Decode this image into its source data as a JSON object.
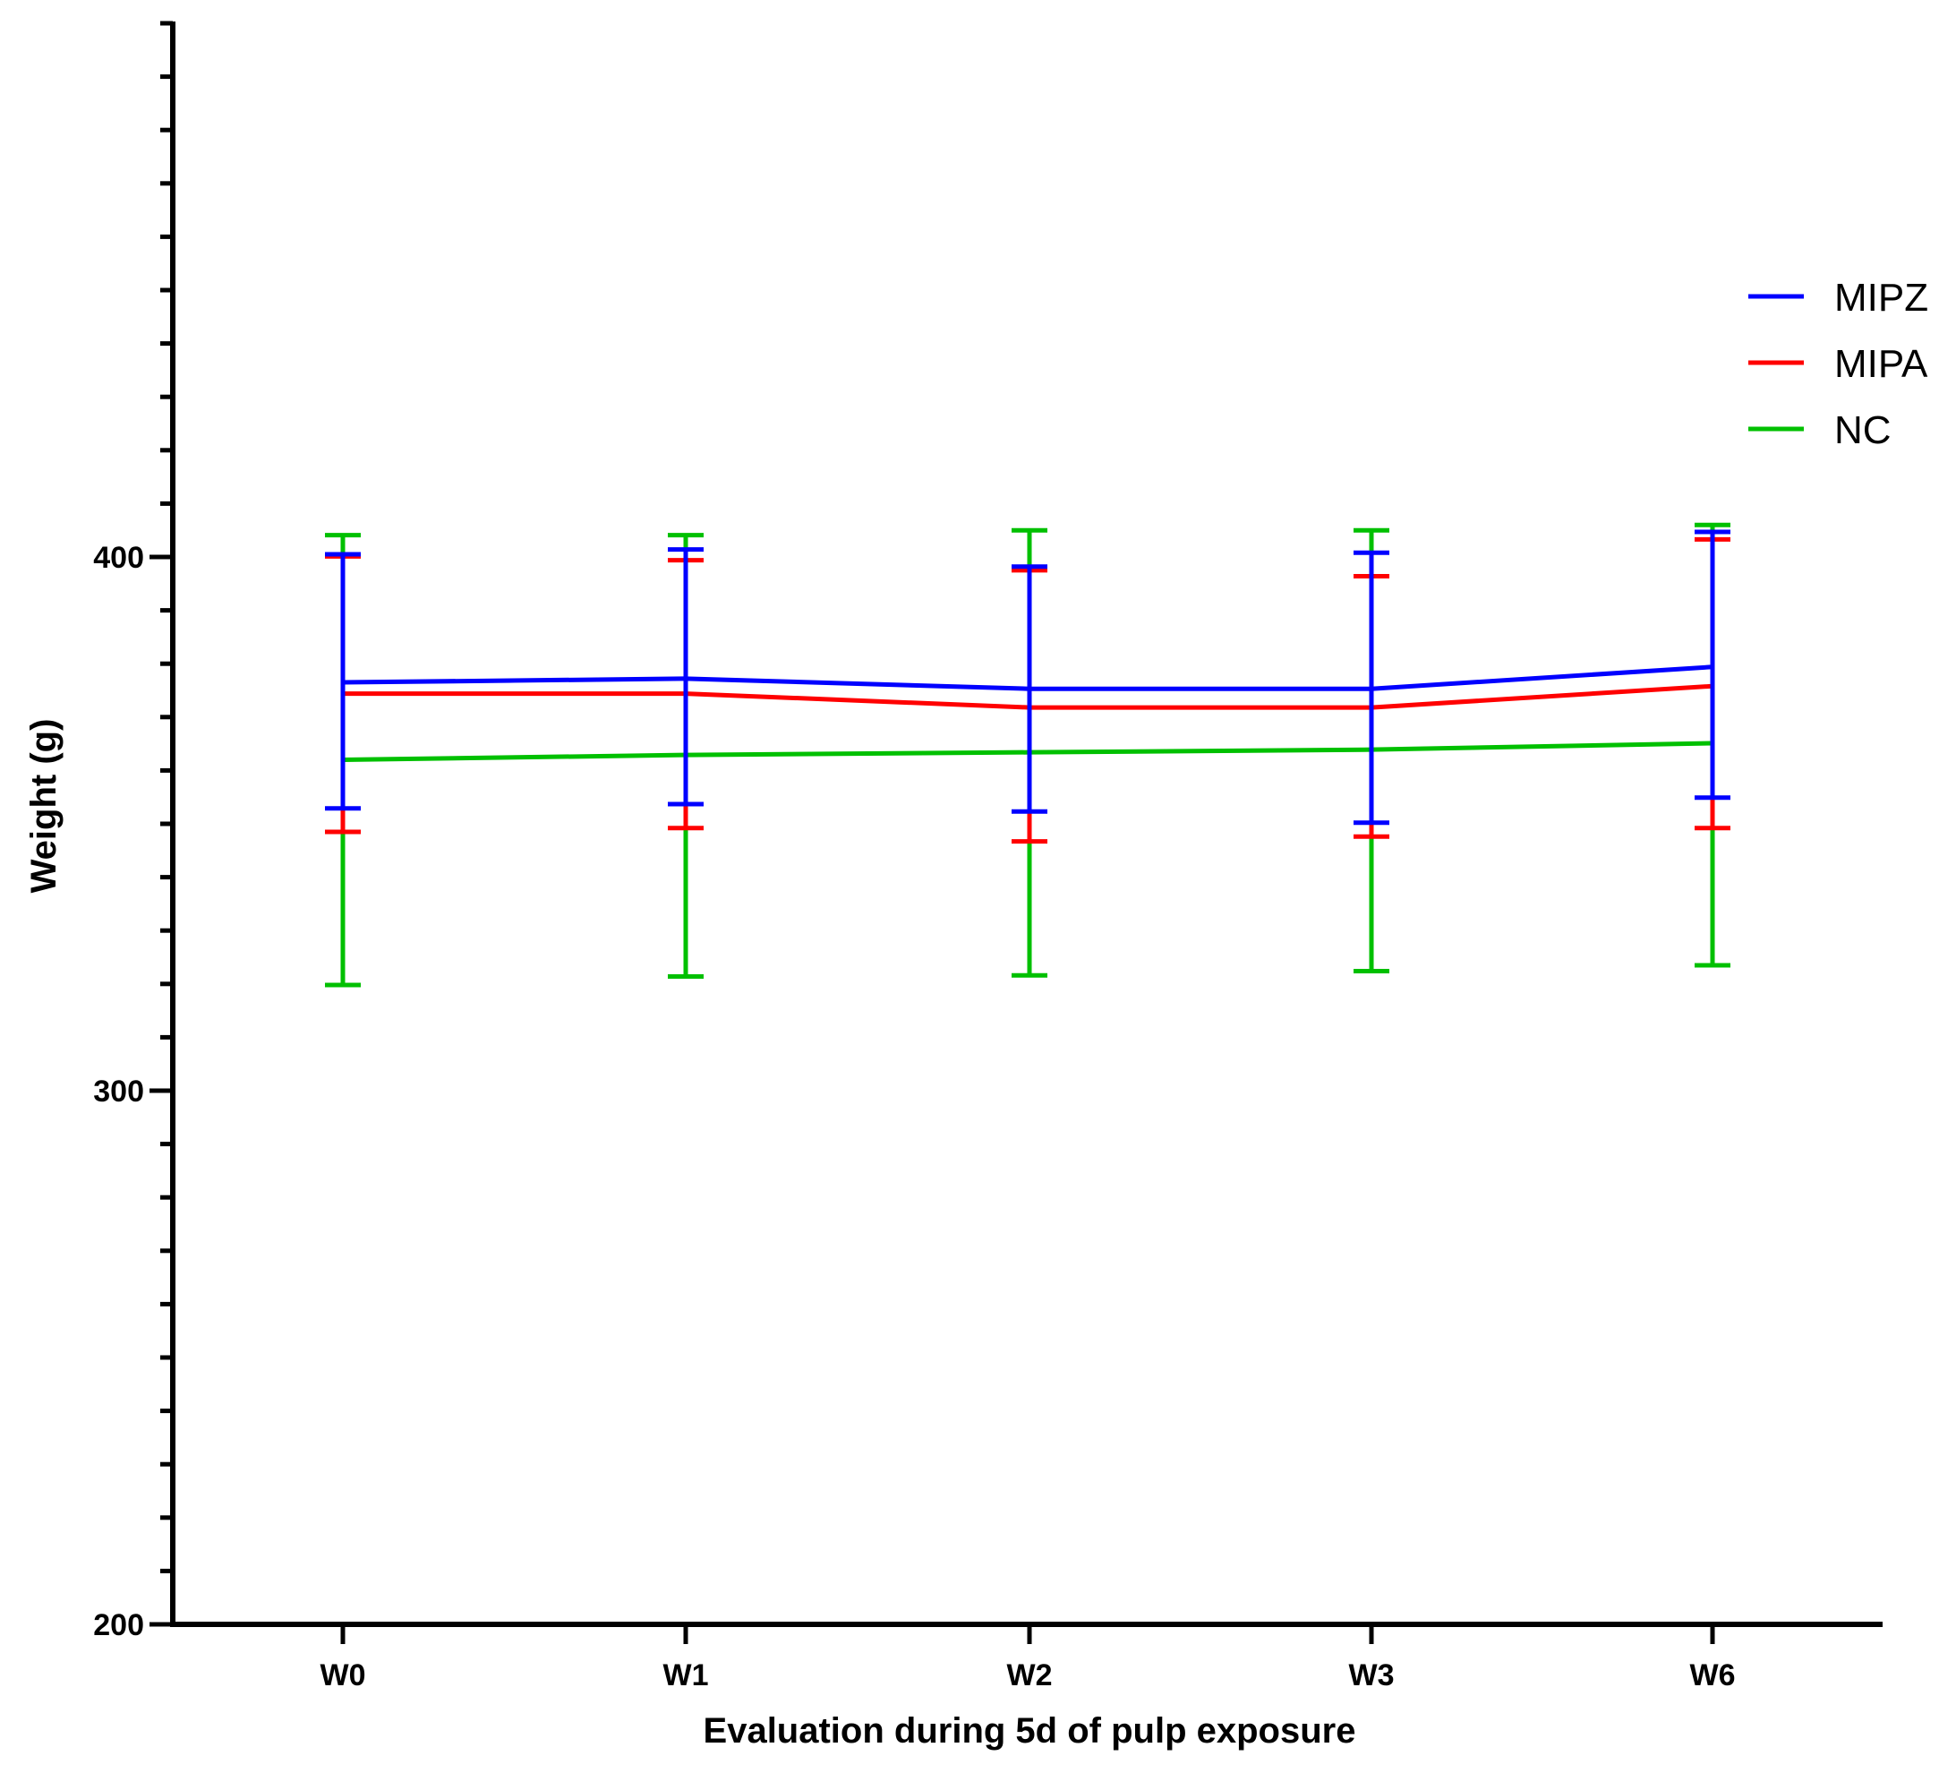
{
  "chart_data": {
    "type": "line",
    "title": "",
    "xlabel": "Evaluation during 5d of pulp exposure",
    "ylabel": "Weight (g)",
    "categories": [
      "W0",
      "W1",
      "W2",
      "W3",
      "W6"
    ],
    "ylim": [
      200,
      500
    ],
    "y_ticks": [
      {
        "value": 200,
        "label": "200"
      },
      {
        "value": 300,
        "label": "300"
      },
      {
        "value": 400,
        "label": "400"
      }
    ],
    "y_minor_step": 10,
    "grid": false,
    "legend_position": "right",
    "series": [
      {
        "name": "MIPZ",
        "color": "#0000ff",
        "values": [
          376.5,
          377.2,
          375.3,
          375.3,
          379.4
        ],
        "error_low": [
          352.9,
          353.7,
          352.3,
          350.2,
          354.9
        ],
        "error_high": [
          400.5,
          401.4,
          398.2,
          400.8,
          404.7
        ]
      },
      {
        "name": "MIPA",
        "color": "#ff0000",
        "values": [
          374.4,
          374.4,
          371.8,
          371.8,
          375.8
        ],
        "error_low": [
          348.5,
          349.2,
          346.7,
          347.6,
          349.2
        ],
        "error_high": [
          400.1,
          399.4,
          397.5,
          396.4,
          403.3
        ]
      },
      {
        "name": "NC",
        "color": "#00c000",
        "values": [
          362.0,
          362.9,
          363.4,
          363.9,
          365.1
        ],
        "error_low": [
          319.8,
          321.4,
          321.6,
          322.4,
          323.5
        ],
        "error_high": [
          404.1,
          404.1,
          405.0,
          405.0,
          406.0
        ]
      }
    ]
  }
}
